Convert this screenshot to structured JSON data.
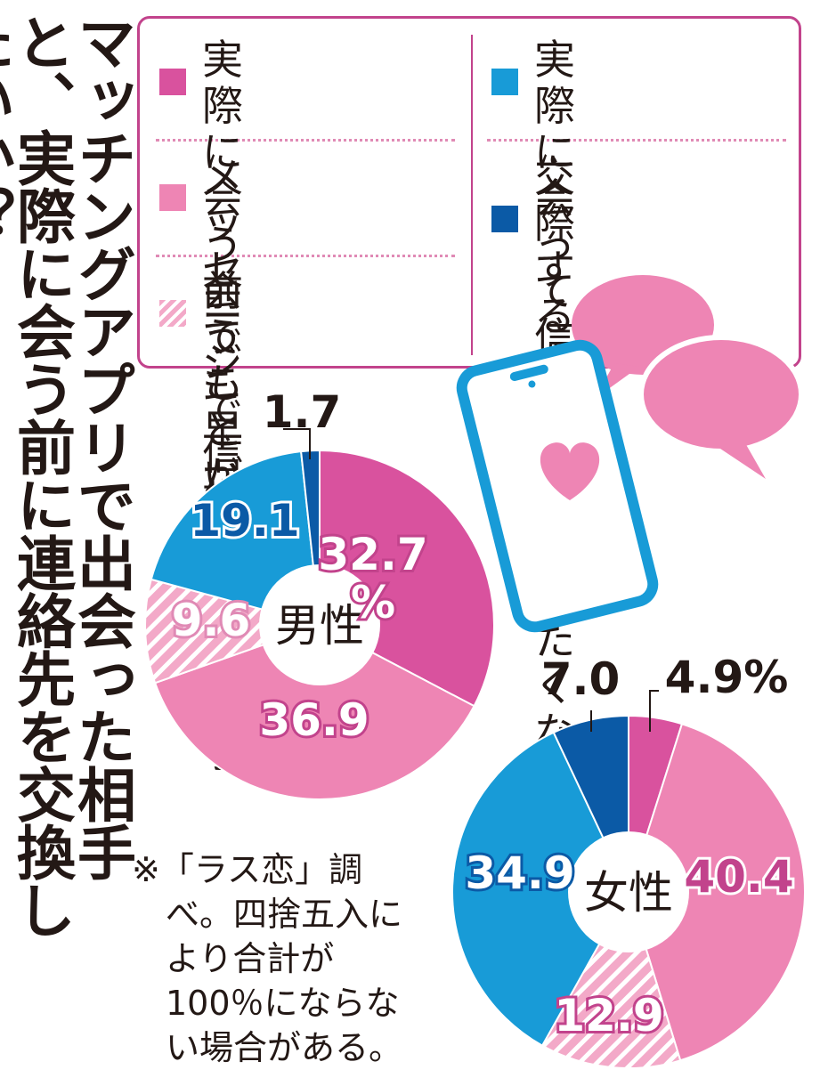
{
  "title": "マッチングアプリで出会った相手と、実際に会う前に連絡先を交換したいか？",
  "legend": [
    {
      "label": "実際に会う前\nでも早い段階で",
      "color": "#d9529e",
      "pattern": "solid"
    },
    {
      "label": "メッセージで\n信頼してから",
      "color": "#ee85b4",
      "pattern": "solid"
    },
    {
      "label": "会うことが決\nまってから",
      "color": "#f3a9c8",
      "pattern": "stripes"
    },
    {
      "label": "実際に会って\n信頼してから",
      "color": "#189bd7",
      "pattern": "solid"
    },
    {
      "label": "交際するまで\nは交換したく\nない",
      "color": "#0b5aa6",
      "pattern": "solid"
    }
  ],
  "note": "※「ラス恋」調べ。四捨五入により合計が100％にならない場合がある。",
  "icons": [
    "smartphone-icon",
    "heart-icon",
    "speech-bubble-icon"
  ],
  "chart_data": [
    {
      "type": "pie",
      "center_label": "男性",
      "categories": [
        "実際に会う前でも早い段階で",
        "メッセージで信頼してから",
        "会うことが決まってから",
        "実際に会って信頼してから",
        "交際するまでは交換したくない"
      ],
      "values": [
        32.7,
        36.9,
        9.6,
        19.1,
        1.7
      ],
      "value_labels": [
        "32.7\n%",
        "36.9",
        "9.6",
        "19.1",
        "1.7"
      ],
      "unit": "%"
    },
    {
      "type": "pie",
      "center_label": "女性",
      "categories": [
        "実際に会う前でも早い段階で",
        "メッセージで信頼してから",
        "会うことが決まってから",
        "実際に会って信頼してから",
        "交際するまでは交換したくない"
      ],
      "values": [
        4.9,
        40.4,
        12.9,
        34.9,
        7.0
      ],
      "value_labels": [
        "4.9%",
        "40.4",
        "12.9",
        "34.9",
        "7.0"
      ],
      "unit": "%"
    }
  ]
}
